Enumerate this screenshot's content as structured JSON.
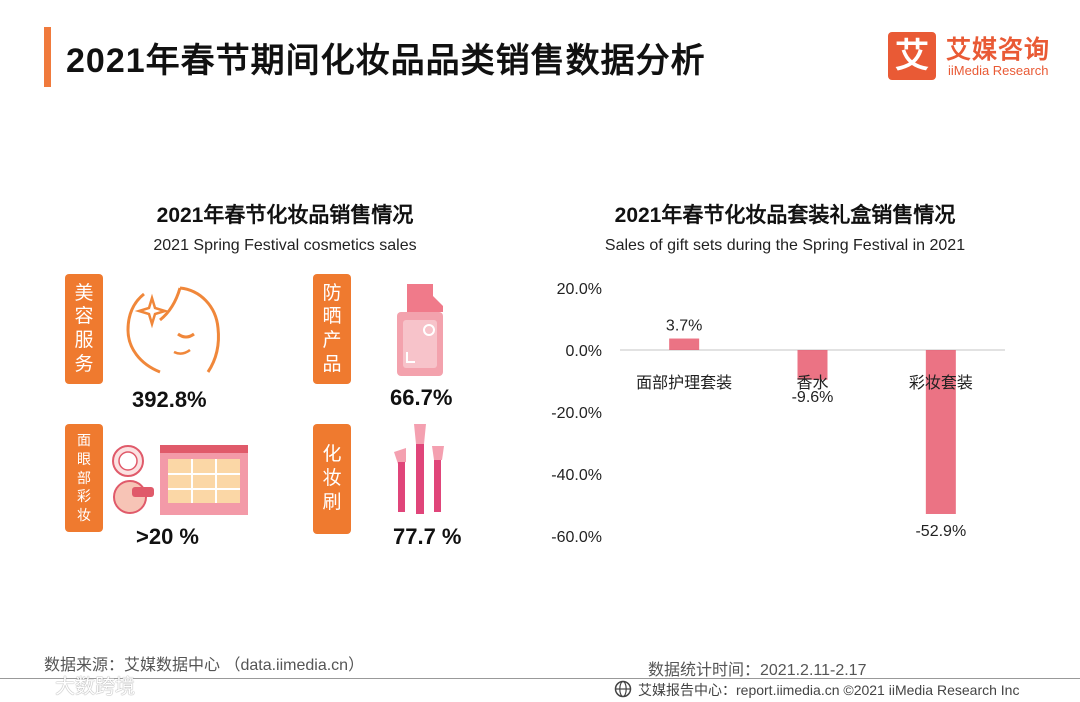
{
  "page": {
    "title": "2021年春节期间化妆品品类销售数据分析",
    "logo_mark": "艾",
    "logo_cn": "艾媒咨询",
    "logo_en": "iiMedia Research"
  },
  "left_panel": {
    "title": "2021年春节化妆品销售情况",
    "subtitle": "2021 Spring Festival cosmetics sales",
    "items": [
      {
        "label_chars": [
          "美",
          "容",
          "服",
          "务"
        ],
        "value": "392.8%",
        "icon": "face-sparkle-icon"
      },
      {
        "label_chars": [
          "防",
          "晒",
          "产",
          "品"
        ],
        "value": "66.7%",
        "icon": "sunscreen-bottle-icon"
      },
      {
        "label_chars": [
          "面",
          "眼",
          "部",
          "彩",
          "妆"
        ],
        "value": ">20 %",
        "icon": "eyeshadow-palette-icon"
      },
      {
        "label_chars": [
          "化",
          "妆",
          "刷"
        ],
        "value": "77.7 %",
        "icon": "makeup-brush-icon"
      }
    ]
  },
  "chart_data": {
    "type": "bar",
    "title": "2021年春节化妆品套装礼盒销售情况",
    "subtitle": "Sales of gift sets during the Spring Festival in 2021",
    "categories": [
      "面部护理套装",
      "香水",
      "彩妆套装"
    ],
    "values": [
      3.7,
      -9.6,
      -52.9
    ],
    "value_labels": [
      "3.7%",
      "-9.6%",
      "-52.9%"
    ],
    "yticks": [
      20,
      0,
      -20,
      -40,
      -60
    ],
    "ytick_labels": [
      "20.0%",
      "0.0%",
      "-20.0%",
      "-40.0%",
      "-60.0%"
    ],
    "ylim": [
      -60,
      20
    ],
    "xlabel": "",
    "ylabel": "",
    "grid": false,
    "color": "#e85a6e"
  },
  "footer": {
    "source": "数据来源：艾媒数据中心 （data.iimedia.cn）",
    "date": "数据统计时间：2021.2.11-2.17",
    "copyright": "艾媒报告中心：report.iimedia.cn  ©2021  iiMedia Research  Inc",
    "watermark": "大数跨境"
  }
}
